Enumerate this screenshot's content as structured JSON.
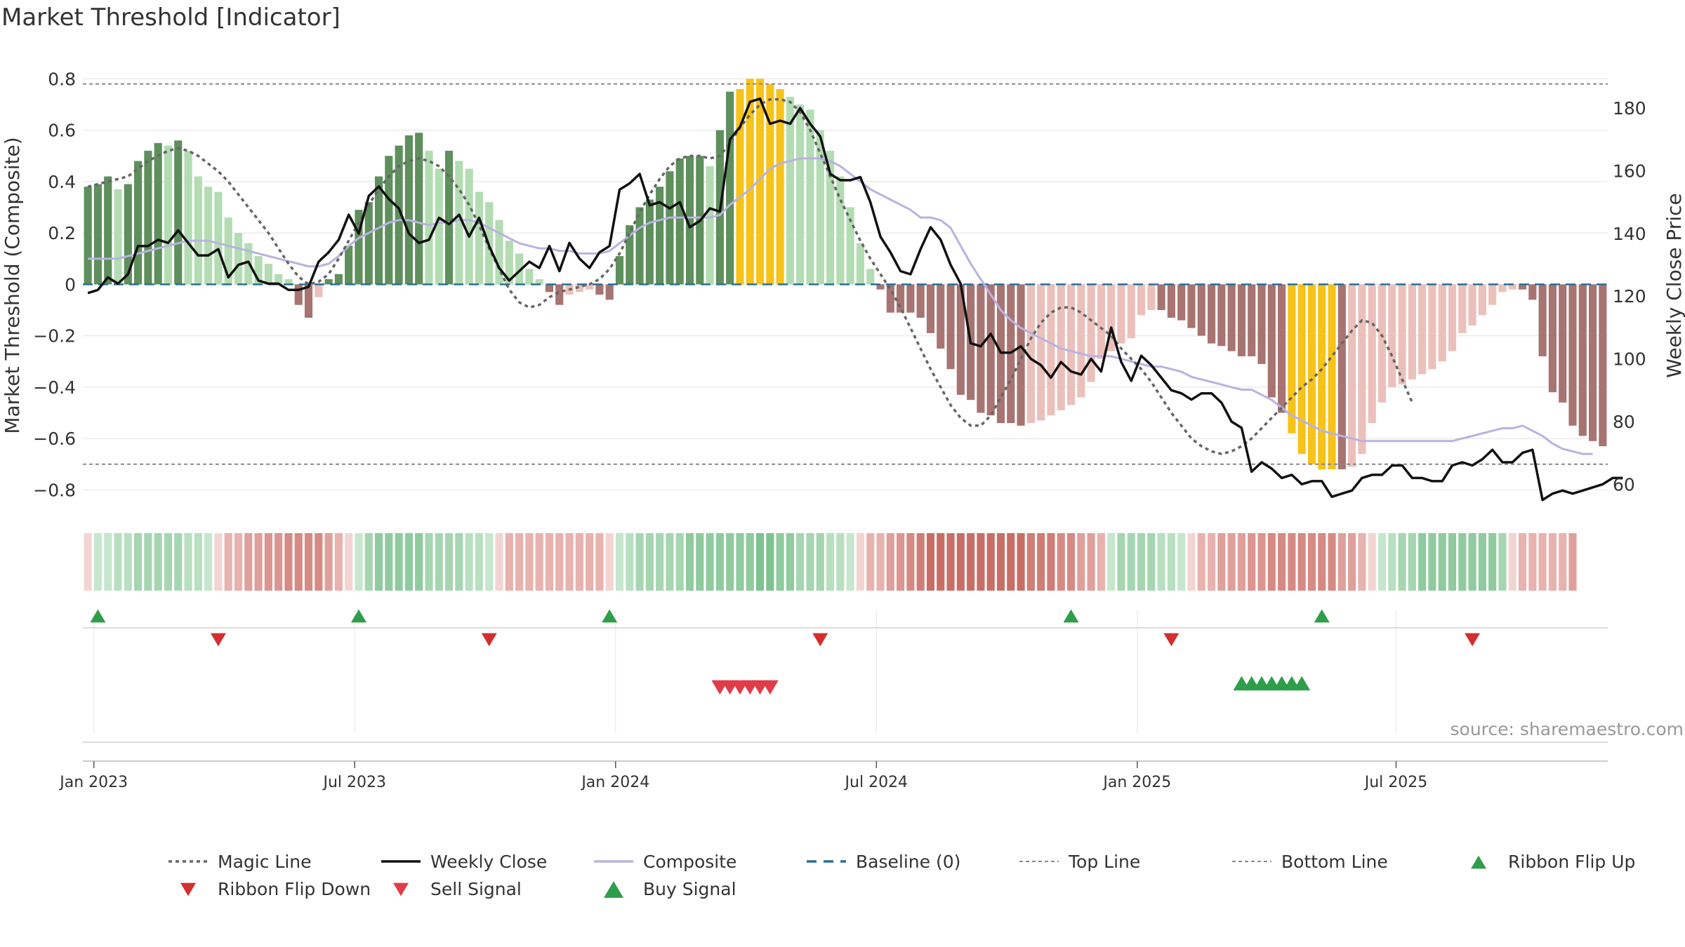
{
  "chart_data": {
    "type": "bar",
    "title": "Market Threshold [Indicator]",
    "ylabel": "Market Threshold (Composite)",
    "y2label": "Weekly Close Price",
    "ylim": [
      -0.9,
      0.82
    ],
    "y2lim": [
      50,
      191
    ],
    "yticks": [
      0.8,
      0.6,
      0.4,
      0.2,
      0,
      -0.2,
      -0.4,
      -0.6,
      -0.8
    ],
    "ytick_labels": [
      "0.8",
      "0.6",
      "0.4",
      "0.2",
      "0",
      "−0.2",
      "−0.4",
      "−0.6",
      "−0.8"
    ],
    "y2ticks": [
      180,
      160,
      140,
      120,
      100,
      80,
      60
    ],
    "y2tick_labels": [
      "180",
      "160",
      "140",
      "120",
      "100",
      "80",
      "60"
    ],
    "xticks": [
      {
        "label": "Jan 2023",
        "week": 0.6
      },
      {
        "label": "Jul 2023",
        "week": 26.6
      },
      {
        "label": "Jan 2024",
        "week": 52.6
      },
      {
        "label": "Jul 2024",
        "week": 78.6
      },
      {
        "label": "Jan 2025",
        "week": 104.6
      },
      {
        "label": "Jul 2025",
        "week": 130.4
      }
    ],
    "grid": true,
    "legend_position": "bottom",
    "source": "source: sharemaestro.com",
    "top_line": 0.78,
    "bottom_line": -0.7,
    "baseline": 0,
    "composite_bars": [
      0.38,
      0.39,
      0.42,
      0.37,
      0.39,
      0.48,
      0.52,
      0.55,
      0.54,
      0.56,
      0.52,
      0.42,
      0.38,
      0.36,
      0.26,
      0.2,
      0.16,
      0.11,
      0.08,
      0.04,
      0.02,
      -0.08,
      -0.13,
      -0.05,
      0.02,
      0.04,
      0.15,
      0.29,
      0.32,
      0.42,
      0.5,
      0.54,
      0.58,
      0.59,
      0.52,
      0.45,
      0.52,
      0.48,
      0.45,
      0.36,
      0.32,
      0.25,
      0.17,
      0.12,
      0.06,
      0.02,
      -0.03,
      -0.08,
      -0.04,
      -0.03,
      -0.02,
      -0.04,
      -0.06,
      0.11,
      0.23,
      0.3,
      0.33,
      0.38,
      0.44,
      0.49,
      0.5,
      0.5,
      0.46,
      0.6,
      0.75,
      0.76,
      0.8,
      0.8,
      0.78,
      0.76,
      0.73,
      0.7,
      0.68,
      0.6,
      0.52,
      0.42,
      0.3,
      0.16,
      0.06,
      -0.02,
      -0.11,
      -0.11,
      -0.11,
      -0.13,
      -0.19,
      -0.25,
      -0.33,
      -0.43,
      -0.45,
      -0.5,
      -0.51,
      -0.54,
      -0.54,
      -0.55,
      -0.54,
      -0.53,
      -0.51,
      -0.49,
      -0.47,
      -0.44,
      -0.38,
      -0.29,
      -0.26,
      -0.23,
      -0.21,
      -0.12,
      -0.1,
      -0.1,
      -0.13,
      -0.14,
      -0.17,
      -0.2,
      -0.23,
      -0.24,
      -0.26,
      -0.28,
      -0.28,
      -0.31,
      -0.44,
      -0.5,
      -0.58,
      -0.66,
      -0.7,
      -0.72,
      -0.72,
      -0.72,
      -0.71,
      -0.66,
      -0.54,
      -0.46,
      -0.4,
      -0.39,
      -0.37,
      -0.35,
      -0.33,
      -0.3,
      -0.26,
      -0.19,
      -0.16,
      -0.12,
      -0.08,
      -0.03,
      -0.02,
      -0.02,
      -0.06,
      -0.28,
      -0.42,
      -0.46,
      -0.55,
      -0.59,
      -0.61,
      -0.63
    ],
    "weekly_close": [
      121,
      122,
      126,
      124,
      127,
      136,
      136,
      138,
      137,
      141,
      137,
      133,
      133,
      135,
      126,
      130,
      131,
      125,
      124,
      124,
      122,
      122,
      123,
      131,
      134,
      138,
      146,
      140,
      152,
      155,
      151,
      148,
      140,
      137,
      138,
      145,
      143,
      146,
      139,
      145,
      136,
      129,
      125,
      128,
      131,
      129,
      136,
      128,
      137,
      132,
      129,
      134,
      136,
      154,
      156,
      159,
      149,
      150,
      148,
      150,
      142,
      144,
      148,
      147,
      170,
      174,
      182,
      183,
      175,
      176,
      175,
      180,
      175,
      171,
      159,
      157,
      157,
      158,
      150,
      139,
      134,
      128,
      127,
      135,
      142,
      138,
      130,
      124,
      105,
      104,
      108,
      102,
      102,
      104,
      100,
      98,
      94,
      99,
      96,
      95,
      100,
      96,
      110,
      99,
      93,
      101,
      98,
      94,
      90,
      89,
      87,
      89,
      89,
      86,
      80,
      78,
      64,
      67,
      65,
      62,
      63,
      60,
      61,
      61,
      56,
      57,
      58,
      62,
      63,
      63,
      66,
      66,
      62,
      62,
      61,
      61,
      66,
      67,
      66,
      68,
      71,
      67,
      67,
      70,
      71,
      55,
      57,
      58,
      57,
      58,
      59,
      60,
      62,
      62
    ],
    "composite_line": [
      0.1,
      0.1,
      0.1,
      0.1,
      0.11,
      0.12,
      0.13,
      0.14,
      0.15,
      0.16,
      0.17,
      0.17,
      0.17,
      0.16,
      0.15,
      0.14,
      0.13,
      0.12,
      0.11,
      0.1,
      0.09,
      0.08,
      0.07,
      0.07,
      0.08,
      0.11,
      0.15,
      0.18,
      0.2,
      0.22,
      0.24,
      0.25,
      0.25,
      0.24,
      0.23,
      0.24,
      0.24,
      0.25,
      0.25,
      0.24,
      0.22,
      0.2,
      0.18,
      0.16,
      0.15,
      0.14,
      0.14,
      0.13,
      0.13,
      0.12,
      0.12,
      0.12,
      0.13,
      0.16,
      0.19,
      0.22,
      0.24,
      0.25,
      0.26,
      0.26,
      0.26,
      0.26,
      0.26,
      0.27,
      0.31,
      0.34,
      0.37,
      0.41,
      0.45,
      0.47,
      0.48,
      0.49,
      0.49,
      0.49,
      0.48,
      0.46,
      0.43,
      0.4,
      0.37,
      0.35,
      0.33,
      0.31,
      0.29,
      0.26,
      0.26,
      0.25,
      0.22,
      0.15,
      0.08,
      0.02,
      -0.04,
      -0.1,
      -0.14,
      -0.17,
      -0.19,
      -0.21,
      -0.23,
      -0.25,
      -0.26,
      -0.27,
      -0.28,
      -0.28,
      -0.28,
      -0.29,
      -0.3,
      -0.31,
      -0.32,
      -0.32,
      -0.33,
      -0.34,
      -0.36,
      -0.37,
      -0.38,
      -0.39,
      -0.4,
      -0.41,
      -0.41,
      -0.43,
      -0.45,
      -0.48,
      -0.51,
      -0.53,
      -0.55,
      -0.57,
      -0.58,
      -0.59,
      -0.6,
      -0.61,
      -0.61,
      -0.61,
      -0.61,
      -0.61,
      -0.61,
      -0.61,
      -0.61,
      -0.61,
      -0.61,
      -0.6,
      -0.59,
      -0.58,
      -0.57,
      -0.56,
      -0.56,
      -0.55,
      -0.57,
      -0.59,
      -0.62,
      -0.64,
      -0.65,
      -0.66,
      -0.66
    ],
    "magic_line": [
      0.38,
      0.39,
      0.4,
      0.41,
      0.42,
      0.45,
      0.48,
      0.5,
      0.52,
      0.53,
      0.52,
      0.5,
      0.47,
      0.44,
      0.4,
      0.35,
      0.3,
      0.25,
      0.2,
      0.14,
      0.08,
      0.03,
      0,
      0.01,
      0.04,
      0.1,
      0.17,
      0.24,
      0.31,
      0.37,
      0.42,
      0.46,
      0.48,
      0.49,
      0.48,
      0.46,
      0.42,
      0.37,
      0.31,
      0.23,
      0.14,
      0.06,
      -0.02,
      -0.07,
      -0.09,
      -0.08,
      -0.05,
      -0.03,
      -0.02,
      -0.01,
      0,
      0.02,
      0.06,
      0.12,
      0.2,
      0.28,
      0.35,
      0.41,
      0.46,
      0.49,
      0.5,
      0.5,
      0.49,
      0.5,
      0.55,
      0.61,
      0.66,
      0.7,
      0.72,
      0.72,
      0.71,
      0.67,
      0.6,
      0.51,
      0.42,
      0.33,
      0.25,
      0.17,
      0.1,
      0.04,
      -0.02,
      -0.09,
      -0.17,
      -0.25,
      -0.33,
      -0.4,
      -0.47,
      -0.52,
      -0.55,
      -0.55,
      -0.51,
      -0.44,
      -0.37,
      -0.29,
      -0.21,
      -0.15,
      -0.11,
      -0.09,
      -0.09,
      -0.11,
      -0.14,
      -0.17,
      -0.2,
      -0.25,
      -0.29,
      -0.33,
      -0.38,
      -0.44,
      -0.5,
      -0.55,
      -0.6,
      -0.63,
      -0.65,
      -0.66,
      -0.65,
      -0.63,
      -0.6,
      -0.56,
      -0.52,
      -0.48,
      -0.44,
      -0.4,
      -0.37,
      -0.33,
      -0.28,
      -0.23,
      -0.18,
      -0.14,
      -0.15,
      -0.2,
      -0.28,
      -0.37,
      -0.46
    ],
    "regime_bars": [
      "#f2d5d3",
      "#c6e6cd",
      "#c6e6cd",
      "#b9dfc1",
      "#b9dfc1",
      "#a6d6b1",
      "#a6d6b1",
      "#a6d6b1",
      "#a6d6b1",
      "#a6d6b1",
      "#b9dfc1",
      "#b9dfc1",
      "#c6e6cd",
      "#f2d5d3",
      "#e8b2ae",
      "#e8b2ae",
      "#dfa09b",
      "#dfa09b",
      "#dc9590",
      "#dc9590",
      "#d78a84",
      "#d78a84",
      "#d78a84",
      "#d78a84",
      "#dfa09b",
      "#e8b2ae",
      "#f2d5d3",
      "#c6e6cd",
      "#a6d6b1",
      "#8fcb9e",
      "#8fcb9e",
      "#8fcb9e",
      "#8fcb9e",
      "#8fcb9e",
      "#a6d6b1",
      "#a6d6b1",
      "#a6d6b1",
      "#a6d6b1",
      "#b9dfc1",
      "#b9dfc1",
      "#c6e6cd",
      "#f2d5d3",
      "#e8b2ae",
      "#e8b2ae",
      "#e8b2ae",
      "#e8b2ae",
      "#e8b2ae",
      "#e8b2ae",
      "#e8b2ae",
      "#e8b2ae",
      "#e8b2ae",
      "#e8b2ae",
      "#f2d5d3",
      "#c6e6cd",
      "#b9dfc1",
      "#a6d6b1",
      "#a6d6b1",
      "#a6d6b1",
      "#a6d6b1",
      "#a6d6b1",
      "#8fcb9e",
      "#8fcb9e",
      "#8fcb9e",
      "#8fcb9e",
      "#8fcb9e",
      "#8fcb9e",
      "#8fcb9e",
      "#7ec290",
      "#7ec290",
      "#8fcb9e",
      "#8fcb9e",
      "#a6d6b1",
      "#a6d6b1",
      "#a6d6b1",
      "#b9dfc1",
      "#b9dfc1",
      "#c6e6cd",
      "#f2d5d3",
      "#e8b2ae",
      "#e8b2ae",
      "#dfa09b",
      "#dc9590",
      "#d78a84",
      "#d07d76",
      "#c96e67",
      "#c96e67",
      "#c96e67",
      "#c96e67",
      "#c96e67",
      "#c96e67",
      "#c96e67",
      "#c96e67",
      "#c96e67",
      "#c96e67",
      "#d07d76",
      "#d07d76",
      "#d07d76",
      "#d78a84",
      "#d78a84",
      "#dfa09b",
      "#dfa09b",
      "#e8b2ae",
      "#c6e6cd",
      "#a6d6b1",
      "#a6d6b1",
      "#a6d6b1",
      "#a6d6b1",
      "#b9dfc1",
      "#b9dfc1",
      "#c6e6cd",
      "#f2d5d3",
      "#e8b2ae",
      "#e8b2ae",
      "#dfa09b",
      "#dfa09b",
      "#dfa09b",
      "#dc9590",
      "#dc9590",
      "#d78a84",
      "#d78a84",
      "#d78a84",
      "#d78a84",
      "#d78a84",
      "#d78a84",
      "#d78a84",
      "#dfa09b",
      "#dfa09b",
      "#e8b2ae",
      "#f2d5d3",
      "#c6e6cd",
      "#b9dfc1",
      "#a6d6b1",
      "#a6d6b1",
      "#8fcb9e",
      "#8fcb9e",
      "#8fcb9e",
      "#8fcb9e",
      "#8fcb9e",
      "#8fcb9e",
      "#8fcb9e",
      "#8fcb9e",
      "#a6d6b1",
      "#f2d5d3",
      "#e8b2ae",
      "#e8b2ae",
      "#e8b2ae",
      "#e8b2ae",
      "#e8b2ae",
      "#dfa09b"
    ],
    "ribbon_flip_up_weeks": [
      1,
      27,
      52,
      98,
      123
    ],
    "ribbon_flip_down_weeks": [
      13,
      40,
      73,
      108,
      138
    ],
    "sell_signal_weeks": [
      63,
      64,
      65,
      66,
      67,
      68
    ],
    "buy_signal_weeks": [
      115,
      116,
      117,
      118,
      119,
      120,
      121
    ]
  },
  "legend": [
    {
      "label": "Magic Line",
      "symbol": "dotted",
      "color": "#666666"
    },
    {
      "label": "Weekly Close",
      "symbol": "solid",
      "color": "#111111"
    },
    {
      "label": "Composite",
      "symbol": "solid",
      "color": "#b9b2e0"
    },
    {
      "label": "Baseline (0)",
      "symbol": "dashed",
      "color": "#2a6f97"
    },
    {
      "label": "Top Line",
      "symbol": "dashed-fine",
      "color": "#888888"
    },
    {
      "label": "Bottom Line",
      "symbol": "dashed-fine",
      "color": "#888888"
    },
    {
      "label": "Ribbon Flip Up",
      "symbol": "triangle-up",
      "color": "#2e9e4a"
    },
    {
      "label": "Ribbon Flip Down",
      "symbol": "triangle-down",
      "color": "#d32f2f"
    },
    {
      "label": "Sell Signal",
      "symbol": "triangle-down",
      "color": "#e03c4a"
    },
    {
      "label": "Buy Signal",
      "symbol": "triangle-up",
      "color": "#2e9e4a"
    }
  ],
  "colors": {
    "bull_dark": "#5e8f5c",
    "bull_light": "#b3dcb2",
    "bear_dark": "#a77471",
    "bear_light": "#ebc0bb",
    "extreme": "#f7c31a",
    "weekly_close": "#111111",
    "composite": "#b9b2e0",
    "magic": "#666666",
    "baseline": "#2a6f97"
  }
}
